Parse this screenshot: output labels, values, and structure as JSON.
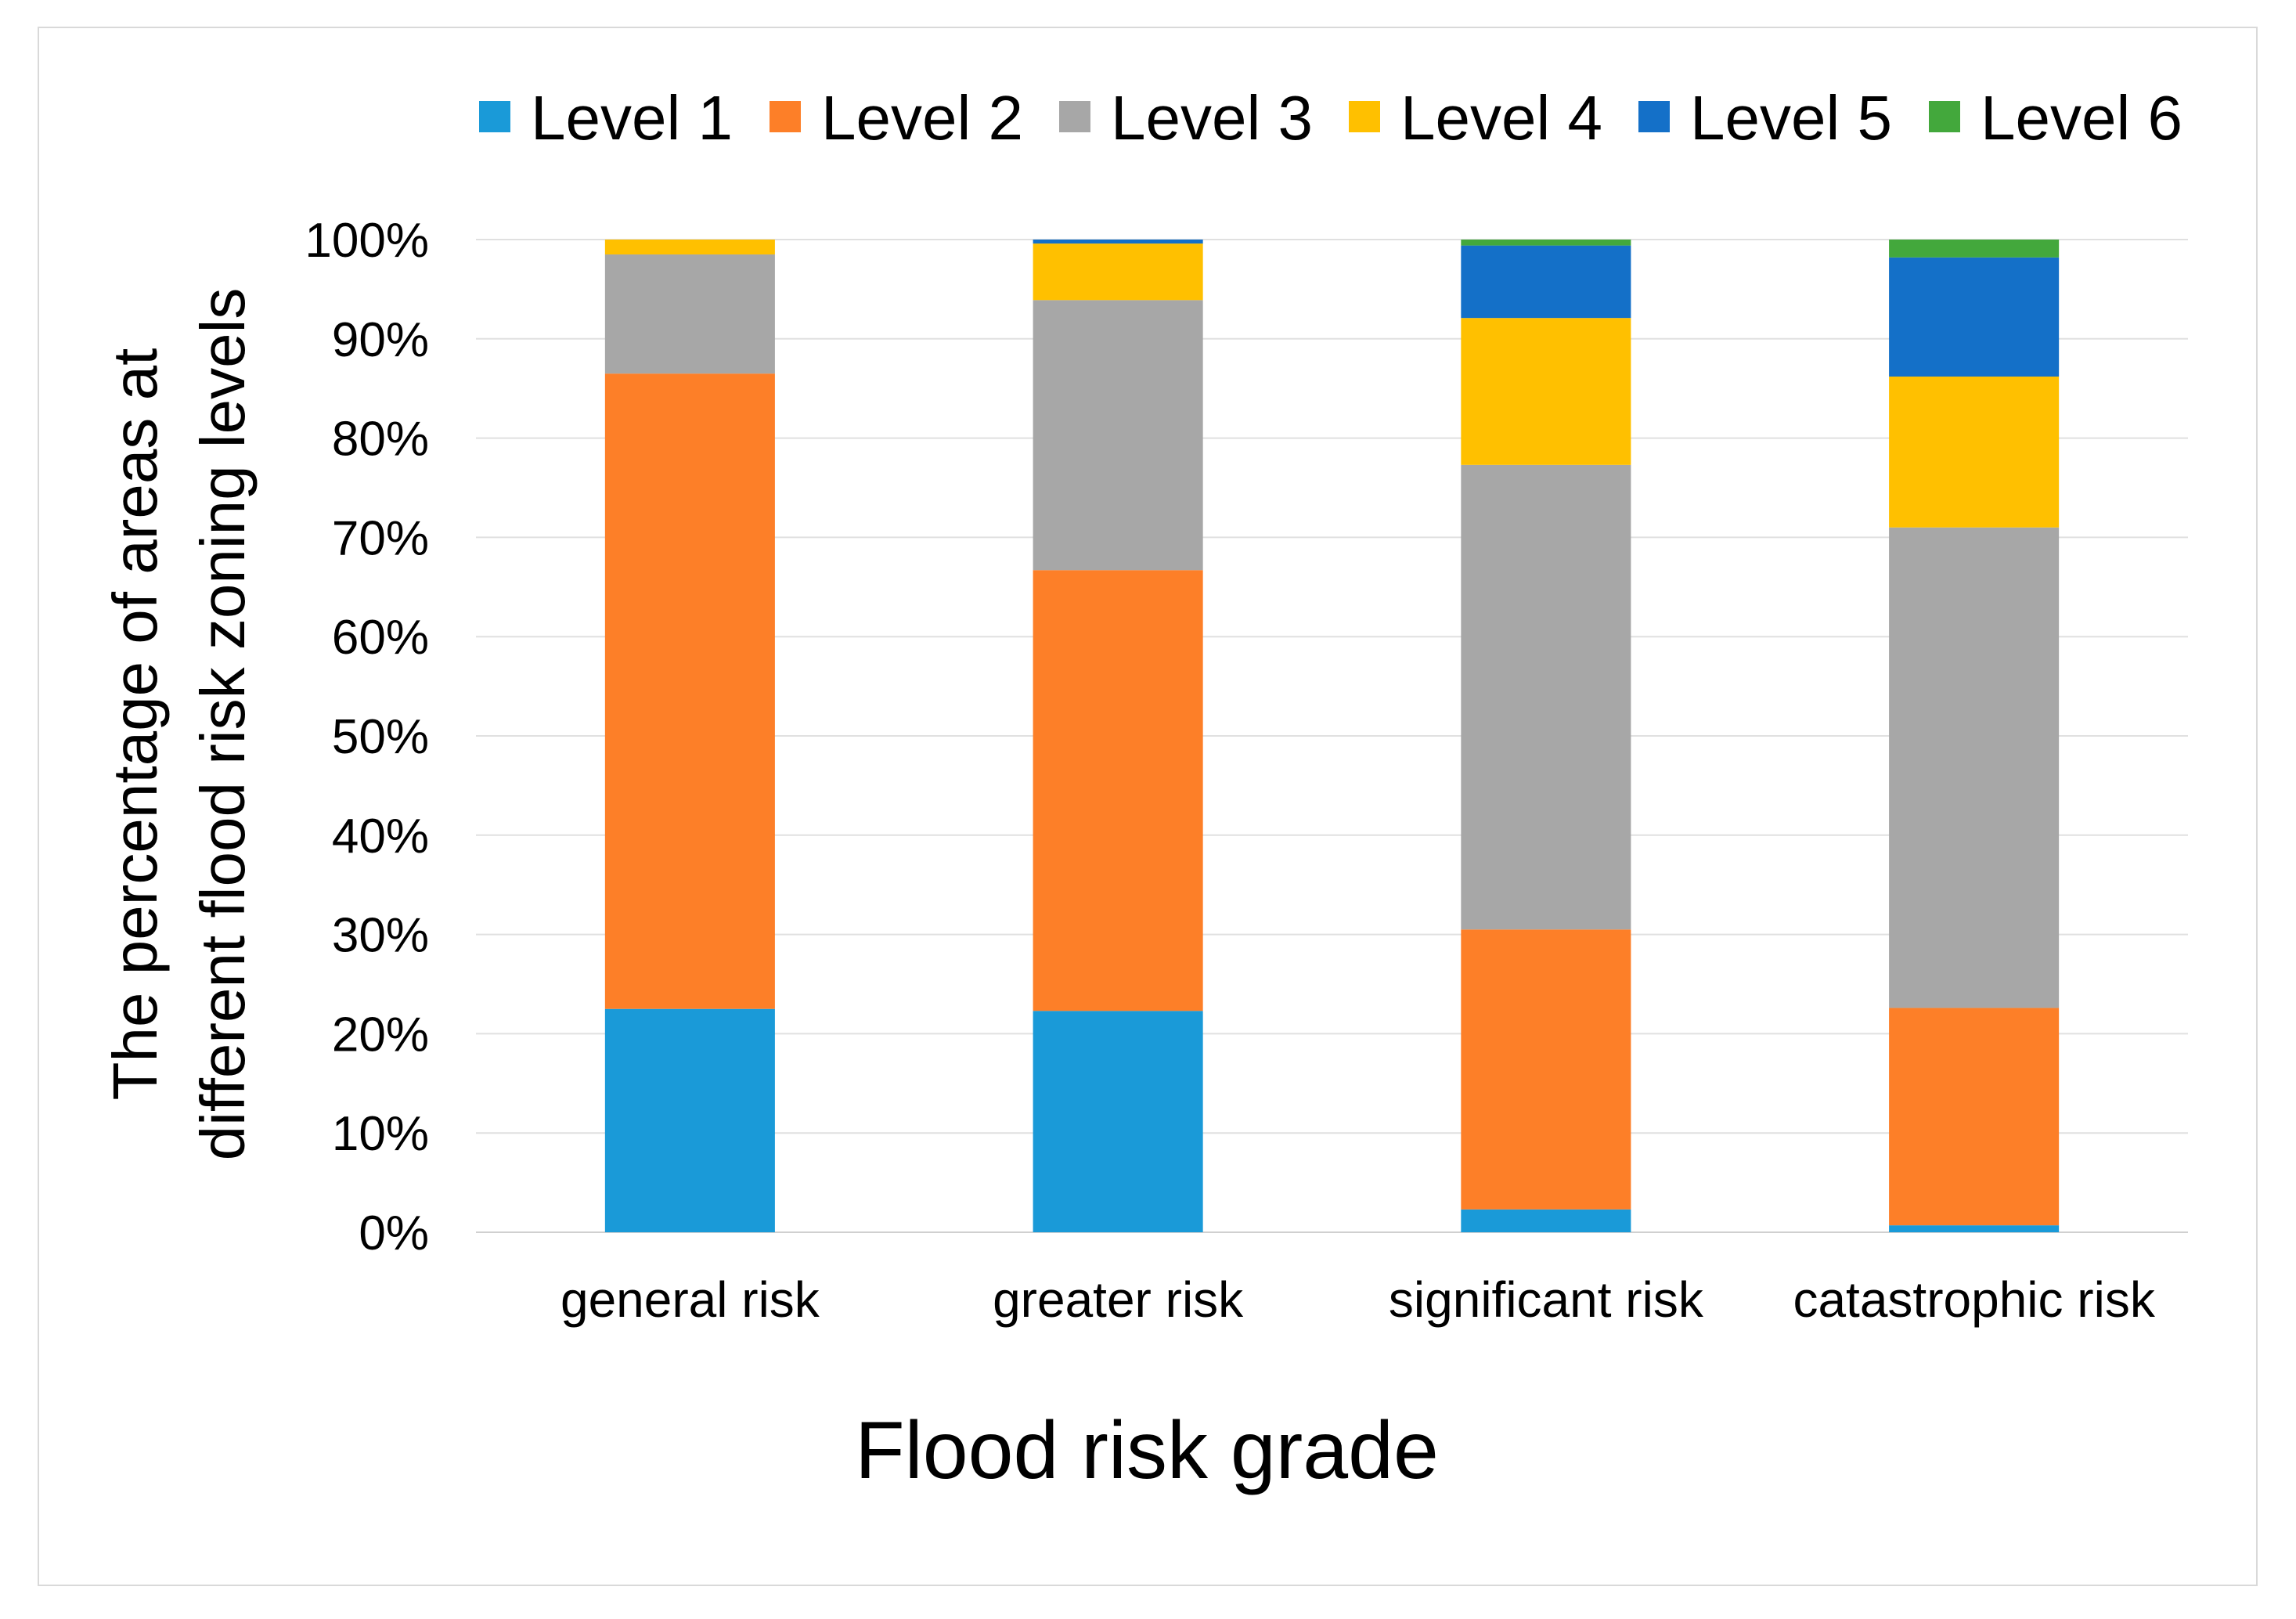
{
  "chart_data": {
    "type": "bar",
    "stacked": true,
    "categories": [
      "general risk",
      "greater risk",
      "significant risk",
      "catastrophic risk"
    ],
    "series": [
      {
        "name": "Level 1",
        "color": "#1a9ad8",
        "values": [
          22.5,
          22.3,
          2.3,
          0.7
        ]
      },
      {
        "name": "Level 2",
        "color": "#fd7f28",
        "values": [
          64.0,
          44.4,
          28.2,
          21.9
        ]
      },
      {
        "name": "Level 3",
        "color": "#a7a7a7",
        "values": [
          12.0,
          27.2,
          46.8,
          48.4
        ]
      },
      {
        "name": "Level 4",
        "color": "#ffc000",
        "values": [
          1.5,
          5.7,
          14.8,
          15.2
        ]
      },
      {
        "name": "Level 5",
        "color": "#1470c8",
        "values": [
          0,
          0.4,
          7.3,
          12.0
        ]
      },
      {
        "name": "Level 6",
        "color": "#43a83c",
        "values": [
          0,
          0,
          0.6,
          1.8
        ]
      }
    ],
    "y_ticks": [
      "0%",
      "10%",
      "20%",
      "30%",
      "40%",
      "50%",
      "60%",
      "70%",
      "80%",
      "90%",
      "100%"
    ],
    "ylim": [
      0,
      100
    ],
    "xlabel": "Flood risk grade",
    "ylabel_line1": "The percentage of areas at",
    "ylabel_line2": "different flood risk zoning levels",
    "grid": true,
    "legend_position": "top"
  }
}
